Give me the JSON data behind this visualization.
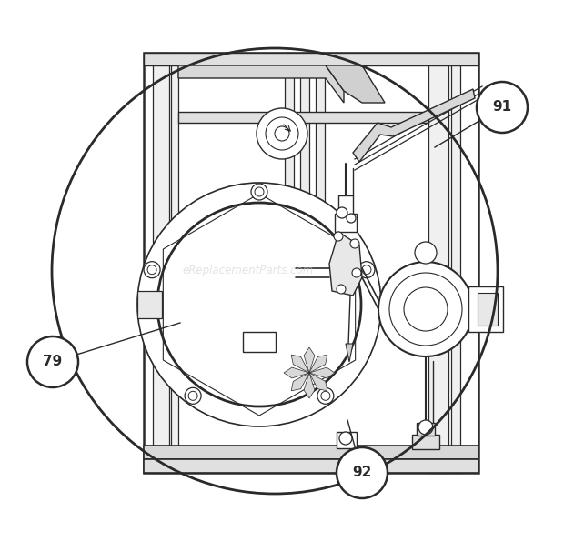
{
  "bg_color": "#ffffff",
  "line_color": "#2a2a2a",
  "fig_width": 6.2,
  "fig_height": 5.95,
  "watermark": "eReplacementParts.com",
  "watermark_color": "#cccccc",
  "watermark_alpha": 0.55,
  "watermark_fontsize": 8.5
}
